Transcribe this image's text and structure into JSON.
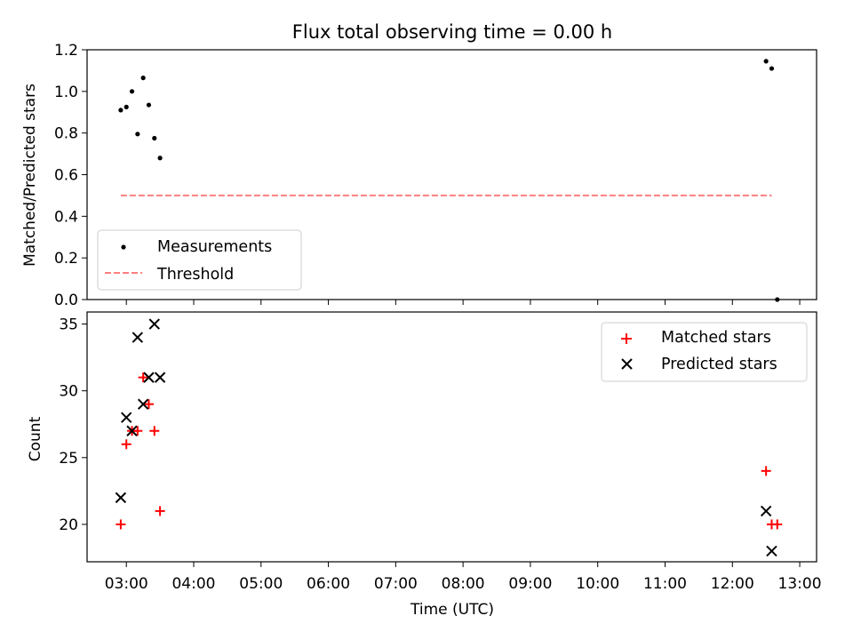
{
  "title": "Flux total observing time = 0.00 h",
  "xlabel": "Time (UTC)",
  "colors": {
    "measurements": "#000000",
    "threshold": "#ff7f7f",
    "matched": "#ff0000",
    "predicted": "#000000"
  },
  "chart_data": [
    {
      "type": "scatter",
      "ylabel": "Matched/Predicted stars",
      "xlim": [
        "02:25",
        "13:15"
      ],
      "ylim": [
        0.0,
        1.2
      ],
      "yticks": [
        0.0,
        0.2,
        0.4,
        0.6,
        0.8,
        1.0,
        1.2
      ],
      "grid": false,
      "legend_position": "lower-left",
      "series": [
        {
          "name": "Measurements",
          "marker": "dot",
          "points": [
            [
              "02:55",
              0.91
            ],
            [
              "03:00",
              0.925
            ],
            [
              "03:05",
              1.0
            ],
            [
              "03:10",
              0.795
            ],
            [
              "03:15",
              1.065
            ],
            [
              "03:20",
              0.935
            ],
            [
              "03:25",
              0.775
            ],
            [
              "03:30",
              0.68
            ],
            [
              "12:30",
              1.145
            ],
            [
              "12:35",
              1.11
            ],
            [
              "12:40",
              0.0
            ]
          ]
        },
        {
          "name": "Threshold",
          "line": "dashed",
          "points": [
            [
              "02:55",
              0.5
            ],
            [
              "12:35",
              0.5
            ]
          ]
        }
      ]
    },
    {
      "type": "scatter",
      "ylabel": "Count",
      "xlim": [
        "02:25",
        "13:15"
      ],
      "ylim": [
        17.2,
        35.9
      ],
      "yticks": [
        20,
        25,
        30,
        35
      ],
      "xticks": [
        "03:00",
        "04:00",
        "05:00",
        "06:00",
        "07:00",
        "08:00",
        "09:00",
        "10:00",
        "11:00",
        "12:00",
        "13:00"
      ],
      "grid": false,
      "legend_position": "upper-right",
      "series": [
        {
          "name": "Matched stars",
          "marker": "plus",
          "points": [
            [
              "02:55",
              20
            ],
            [
              "03:00",
              26
            ],
            [
              "03:05",
              27
            ],
            [
              "03:10",
              27
            ],
            [
              "03:15",
              31
            ],
            [
              "03:20",
              29
            ],
            [
              "03:25",
              27
            ],
            [
              "03:30",
              21
            ],
            [
              "12:30",
              24
            ],
            [
              "12:35",
              20
            ],
            [
              "12:40",
              20
            ]
          ]
        },
        {
          "name": "Predicted stars",
          "marker": "x",
          "points": [
            [
              "02:55",
              22
            ],
            [
              "03:00",
              28
            ],
            [
              "03:05",
              27
            ],
            [
              "03:10",
              34
            ],
            [
              "03:15",
              29
            ],
            [
              "03:20",
              31
            ],
            [
              "03:25",
              35
            ],
            [
              "03:30",
              31
            ],
            [
              "12:30",
              21
            ],
            [
              "12:35",
              18
            ]
          ]
        }
      ]
    }
  ]
}
